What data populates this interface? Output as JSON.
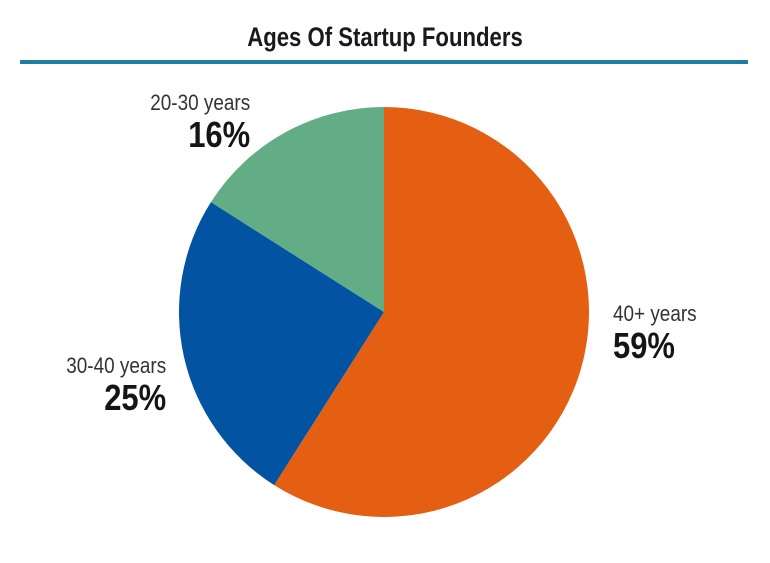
{
  "title": "Ages Of Startup Founders",
  "colors": {
    "rule": "#1f7ea3",
    "title": "#1a1a1a"
  },
  "chart_data": {
    "type": "pie",
    "title": "Ages Of Startup Founders",
    "slices": [
      {
        "label": "40+ years",
        "value": 59,
        "display": "59%",
        "color": "#e55f13"
      },
      {
        "label": "30-40 years",
        "value": 25,
        "display": "25%",
        "color": "#0253a2"
      },
      {
        "label": "20-30 years",
        "value": 16,
        "display": "16%",
        "color": "#62ad86"
      }
    ],
    "start_angle_deg": 0,
    "direction": "clockwise",
    "legend": "none (direct labels)"
  },
  "labels": {
    "s40": {
      "cat": "40+ years",
      "pct": "59%"
    },
    "s30": {
      "cat": "30-40 years",
      "pct": "25%"
    },
    "s20": {
      "cat": "20-30 years",
      "pct": "16%"
    }
  }
}
